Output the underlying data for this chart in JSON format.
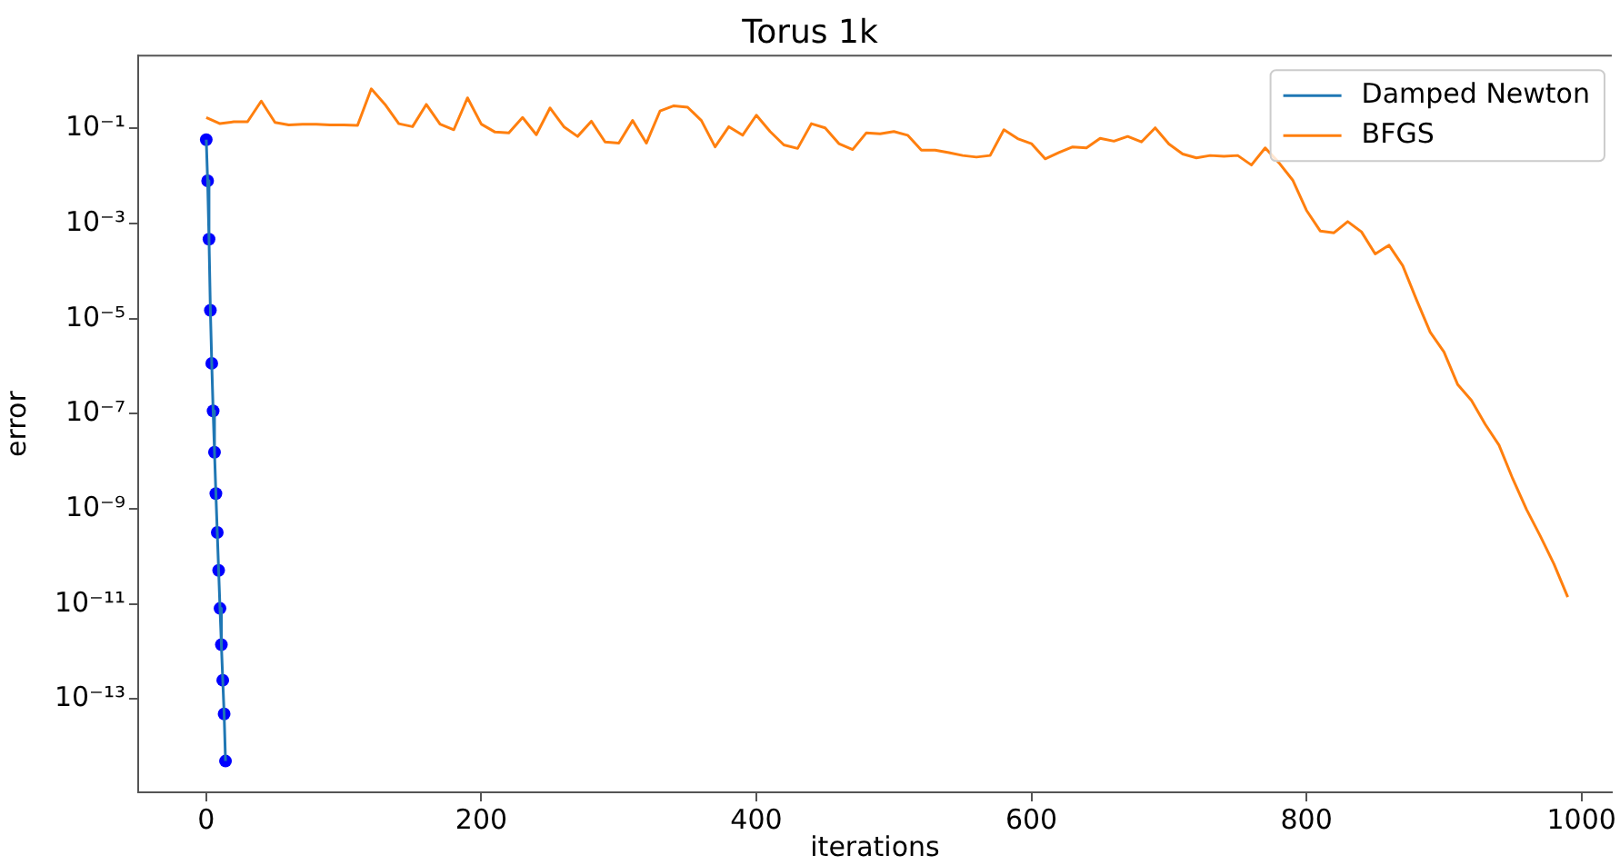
{
  "chart_data": {
    "type": "line",
    "title": "Torus 1k",
    "xlabel": "iterations",
    "ylabel": "error",
    "log": "y",
    "grid": false,
    "legend": "top right",
    "xlim": [
      -49.5,
      1022
    ],
    "xticks": [
      0,
      200,
      400,
      600,
      800,
      1000
    ],
    "ylim": [
      1.1e-15,
      3.4
    ],
    "yticks": [
      {
        "value": 0.1,
        "label": "10⁻¹"
      },
      {
        "value": 0.001,
        "label": "10⁻³"
      },
      {
        "value": 1e-05,
        "label": "10⁻⁵"
      },
      {
        "value": 1e-07,
        "label": "10⁻⁷"
      },
      {
        "value": 1e-09,
        "label": "10⁻⁹"
      },
      {
        "value": 1e-11,
        "label": "10⁻¹¹"
      },
      {
        "value": 1e-13,
        "label": "10⁻¹³"
      }
    ],
    "series": [
      {
        "name": "Damped Newton",
        "type": "line",
        "color": "#1f77b4",
        "marker": "none",
        "x": [
          0,
          1,
          2,
          3,
          4,
          5,
          6,
          7,
          8,
          9,
          10,
          11,
          12,
          13,
          14
        ],
        "values": [
          0.058,
          0.0079,
          0.00047,
          1.5e-05,
          1.15e-06,
          1.15e-07,
          1.55e-08,
          2.1e-09,
          3.2e-10,
          5.1e-11,
          8.1e-12,
          1.4e-12,
          2.5e-13,
          4.9e-14,
          5e-15
        ]
      },
      {
        "type": "scatter",
        "color": "#0000ff",
        "marker": "circle",
        "x": [
          0,
          1,
          2,
          3,
          4,
          5,
          6,
          7,
          8,
          9,
          10,
          11,
          12,
          13,
          14
        ],
        "values": [
          0.058,
          0.0079,
          0.00047,
          1.5e-05,
          1.15e-06,
          1.15e-07,
          1.55e-08,
          2.1e-09,
          3.2e-10,
          5.1e-11,
          8.1e-12,
          1.4e-12,
          2.5e-13,
          4.9e-14,
          5e-15
        ]
      },
      {
        "name": "BFGS",
        "type": "line",
        "color": "#ff7f0e",
        "marker": "none",
        "x": [
          0,
          10,
          20,
          30,
          40,
          50,
          60,
          70,
          80,
          90,
          100,
          110,
          120,
          130,
          140,
          150,
          160,
          170,
          180,
          190,
          200,
          210,
          220,
          230,
          240,
          250,
          260,
          270,
          280,
          290,
          300,
          310,
          320,
          330,
          340,
          350,
          360,
          370,
          380,
          390,
          400,
          410,
          420,
          430,
          440,
          450,
          460,
          470,
          480,
          490,
          500,
          510,
          520,
          530,
          540,
          550,
          560,
          570,
          580,
          590,
          600,
          610,
          620,
          630,
          640,
          650,
          660,
          670,
          680,
          690,
          700,
          710,
          720,
          730,
          740,
          750,
          760,
          770,
          780,
          790,
          800,
          810,
          820,
          830,
          840,
          850,
          860,
          870,
          880,
          890,
          900,
          910,
          920,
          930,
          940,
          950,
          960,
          970,
          980,
          990
        ],
        "values": [
          0.17,
          0.126,
          0.138,
          0.138,
          0.376,
          0.134,
          0.119,
          0.123,
          0.123,
          0.119,
          0.119,
          0.116,
          0.68,
          0.32,
          0.126,
          0.109,
          0.32,
          0.123,
          0.094,
          0.44,
          0.123,
          0.084,
          0.081,
          0.17,
          0.074,
          0.27,
          0.109,
          0.068,
          0.142,
          0.052,
          0.049,
          0.147,
          0.049,
          0.234,
          0.3,
          0.28,
          0.147,
          0.041,
          0.109,
          0.072,
          0.19,
          0.086,
          0.045,
          0.038,
          0.126,
          0.103,
          0.048,
          0.036,
          0.081,
          0.077,
          0.086,
          0.072,
          0.035,
          0.035,
          0.031,
          0.027,
          0.025,
          0.027,
          0.094,
          0.061,
          0.048,
          0.023,
          0.031,
          0.041,
          0.039,
          0.062,
          0.054,
          0.068,
          0.052,
          0.103,
          0.047,
          0.029,
          0.024,
          0.027,
          0.026,
          0.027,
          0.017,
          0.039,
          0.019,
          0.0082,
          0.0019,
          0.0007,
          0.00064,
          0.0011,
          0.00067,
          0.00023,
          0.00035,
          0.00013,
          2.5e-05,
          5.2e-06,
          2e-06,
          4.1e-07,
          1.9e-07,
          6e-08,
          2.2e-08,
          4.3e-09,
          9.8e-10,
          2.7e-10,
          6.9e-11,
          1.4e-11
        ]
      }
    ]
  }
}
